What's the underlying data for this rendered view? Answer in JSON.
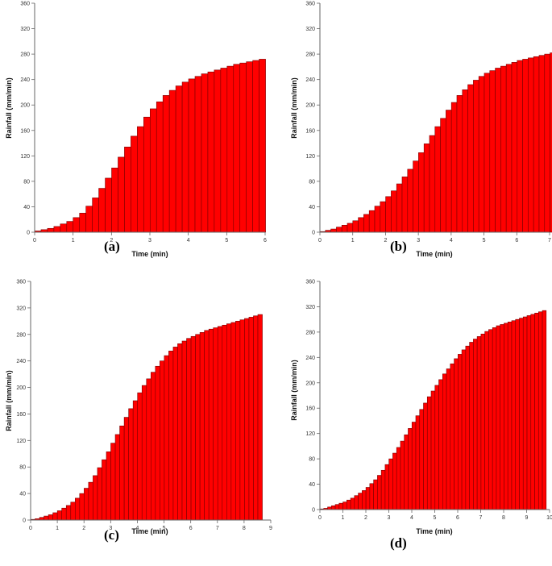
{
  "colors": {
    "bar_fill": "#ff0000",
    "bar_stroke": "#7a0000",
    "axis": "#666666"
  },
  "chart_data": [
    {
      "type": "bar",
      "panel": "(a)",
      "xlabel": "Time (min)",
      "ylabel": "Rainfall (mm/min)",
      "xlim": [
        0,
        6
      ],
      "ylim": [
        0,
        360
      ],
      "xticks": [
        "0",
        "1",
        "2",
        "3",
        "4",
        "5",
        "6"
      ],
      "yticks": [
        "0",
        "40",
        "80",
        "120",
        "160",
        "200",
        "240",
        "280",
        "320",
        "360"
      ],
      "bar_width": 0.167,
      "values": [
        2,
        4,
        6,
        9,
        13,
        17,
        23,
        30,
        41,
        54,
        69,
        85,
        101,
        118,
        134,
        151,
        166,
        181,
        194,
        205,
        215,
        223,
        230,
        236,
        241,
        245,
        249,
        252,
        255,
        258,
        261,
        264,
        266,
        268,
        270,
        272
      ]
    },
    {
      "type": "bar",
      "panel": "(b)",
      "xlabel": "Time (min)",
      "ylabel": "Rainfall (mm/min)",
      "xlim": [
        0,
        7
      ],
      "ylim": [
        0,
        360
      ],
      "xticks": [
        "0",
        "1",
        "2",
        "3",
        "4",
        "5",
        "6",
        "7"
      ],
      "yticks": [
        "0",
        "40",
        "80",
        "120",
        "160",
        "200",
        "240",
        "280",
        "320",
        "360"
      ],
      "bar_width": 0.167,
      "values": [
        1,
        3,
        5,
        8,
        11,
        14,
        18,
        23,
        28,
        34,
        41,
        48,
        56,
        65,
        76,
        87,
        99,
        112,
        125,
        139,
        152,
        166,
        179,
        192,
        204,
        215,
        224,
        232,
        239,
        245,
        250,
        254,
        258,
        261,
        264,
        267,
        270,
        272,
        274,
        276,
        278,
        280,
        282
      ]
    },
    {
      "type": "bar",
      "panel": "(c)",
      "xlabel": "Time (min)",
      "ylabel": "Rainfall (mm/min)",
      "xlim": [
        0,
        9
      ],
      "ylim": [
        0,
        360
      ],
      "xticks": [
        "0",
        "1",
        "2",
        "3",
        "4",
        "5",
        "6",
        "7",
        "8",
        "9"
      ],
      "yticks": [
        "0",
        "40",
        "80",
        "120",
        "160",
        "200",
        "240",
        "280",
        "320",
        "360"
      ],
      "bar_width": 0.167,
      "values": [
        1,
        2,
        4,
        6,
        8,
        11,
        14,
        18,
        22,
        27,
        33,
        40,
        48,
        57,
        67,
        79,
        91,
        103,
        116,
        129,
        142,
        155,
        168,
        180,
        192,
        203,
        213,
        223,
        232,
        240,
        248,
        255,
        261,
        266,
        270,
        274,
        277,
        280,
        283,
        286,
        288,
        290,
        292,
        294,
        296,
        298,
        300,
        302,
        304,
        306,
        308,
        310
      ]
    },
    {
      "type": "bar",
      "panel": "(d)",
      "xlabel": "Time (min)",
      "ylabel": "Rainfall (mm/min)",
      "xlim": [
        0,
        10
      ],
      "ylim": [
        0,
        360
      ],
      "xticks": [
        "0",
        "1",
        "2",
        "3",
        "4",
        "5",
        "6",
        "7",
        "8",
        "9",
        "10"
      ],
      "yticks": [
        "0",
        "40",
        "80",
        "120",
        "160",
        "200",
        "240",
        "280",
        "320",
        "360"
      ],
      "bar_width": 0.167,
      "values": [
        1,
        2,
        4,
        6,
        8,
        10,
        12,
        15,
        18,
        22,
        26,
        30,
        35,
        41,
        47,
        54,
        62,
        71,
        80,
        89,
        98,
        108,
        118,
        128,
        138,
        148,
        158,
        168,
        178,
        187,
        196,
        205,
        214,
        222,
        230,
        238,
        245,
        252,
        258,
        264,
        269,
        273,
        277,
        281,
        284,
        287,
        290,
        292,
        294,
        296,
        298,
        300,
        302,
        304,
        306,
        308,
        310,
        312,
        314
      ]
    }
  ]
}
